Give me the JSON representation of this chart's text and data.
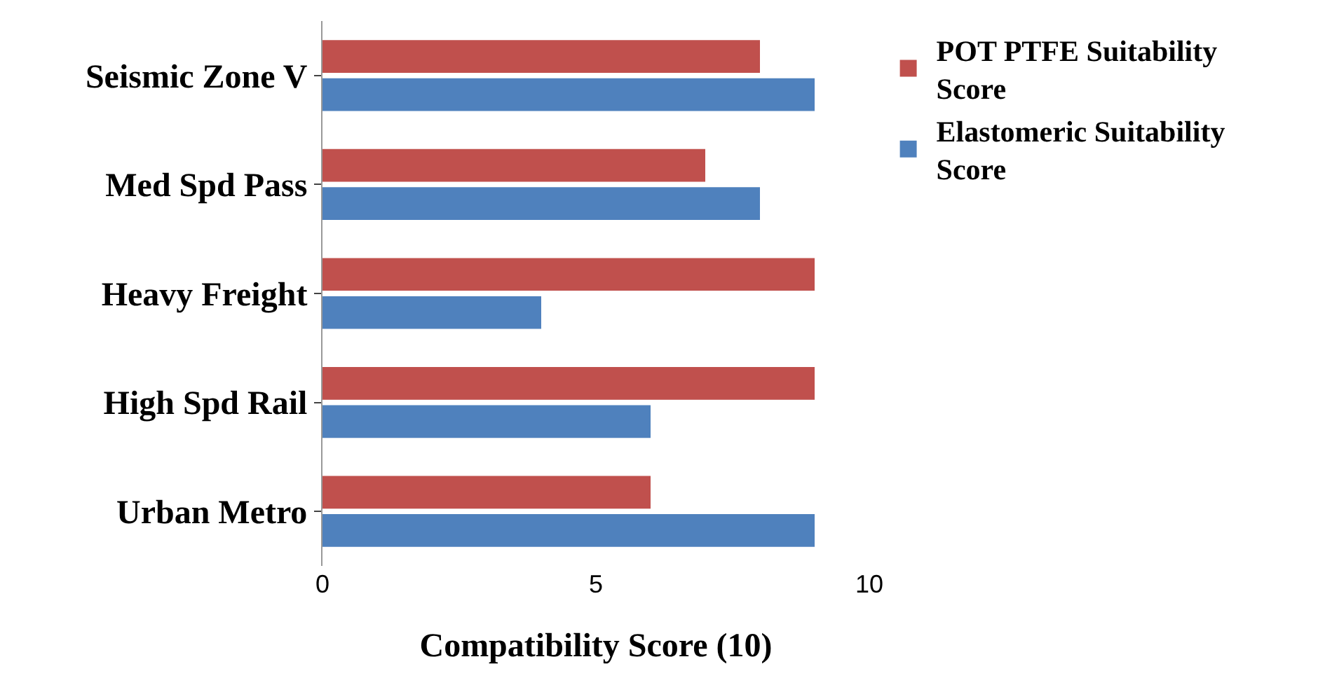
{
  "chart_data": {
    "type": "bar",
    "orientation": "horizontal",
    "xlabel": "Compatibility Score (10)",
    "categories": [
      "Seismic Zone V",
      "Med Spd Pass",
      "Heavy Freight",
      "High Spd Rail",
      "Urban Metro"
    ],
    "series": [
      {
        "name": "POT PTFE Suitability Score",
        "color": "#c0504d",
        "values": [
          8,
          7,
          9,
          9,
          6
        ]
      },
      {
        "name": "Elastomeric Suitability Score",
        "color": "#4f81bd",
        "values": [
          9,
          8,
          4,
          6,
          9
        ]
      }
    ],
    "xlim": [
      0,
      10
    ],
    "xticks": [
      0,
      5,
      10
    ],
    "legend": "right"
  }
}
